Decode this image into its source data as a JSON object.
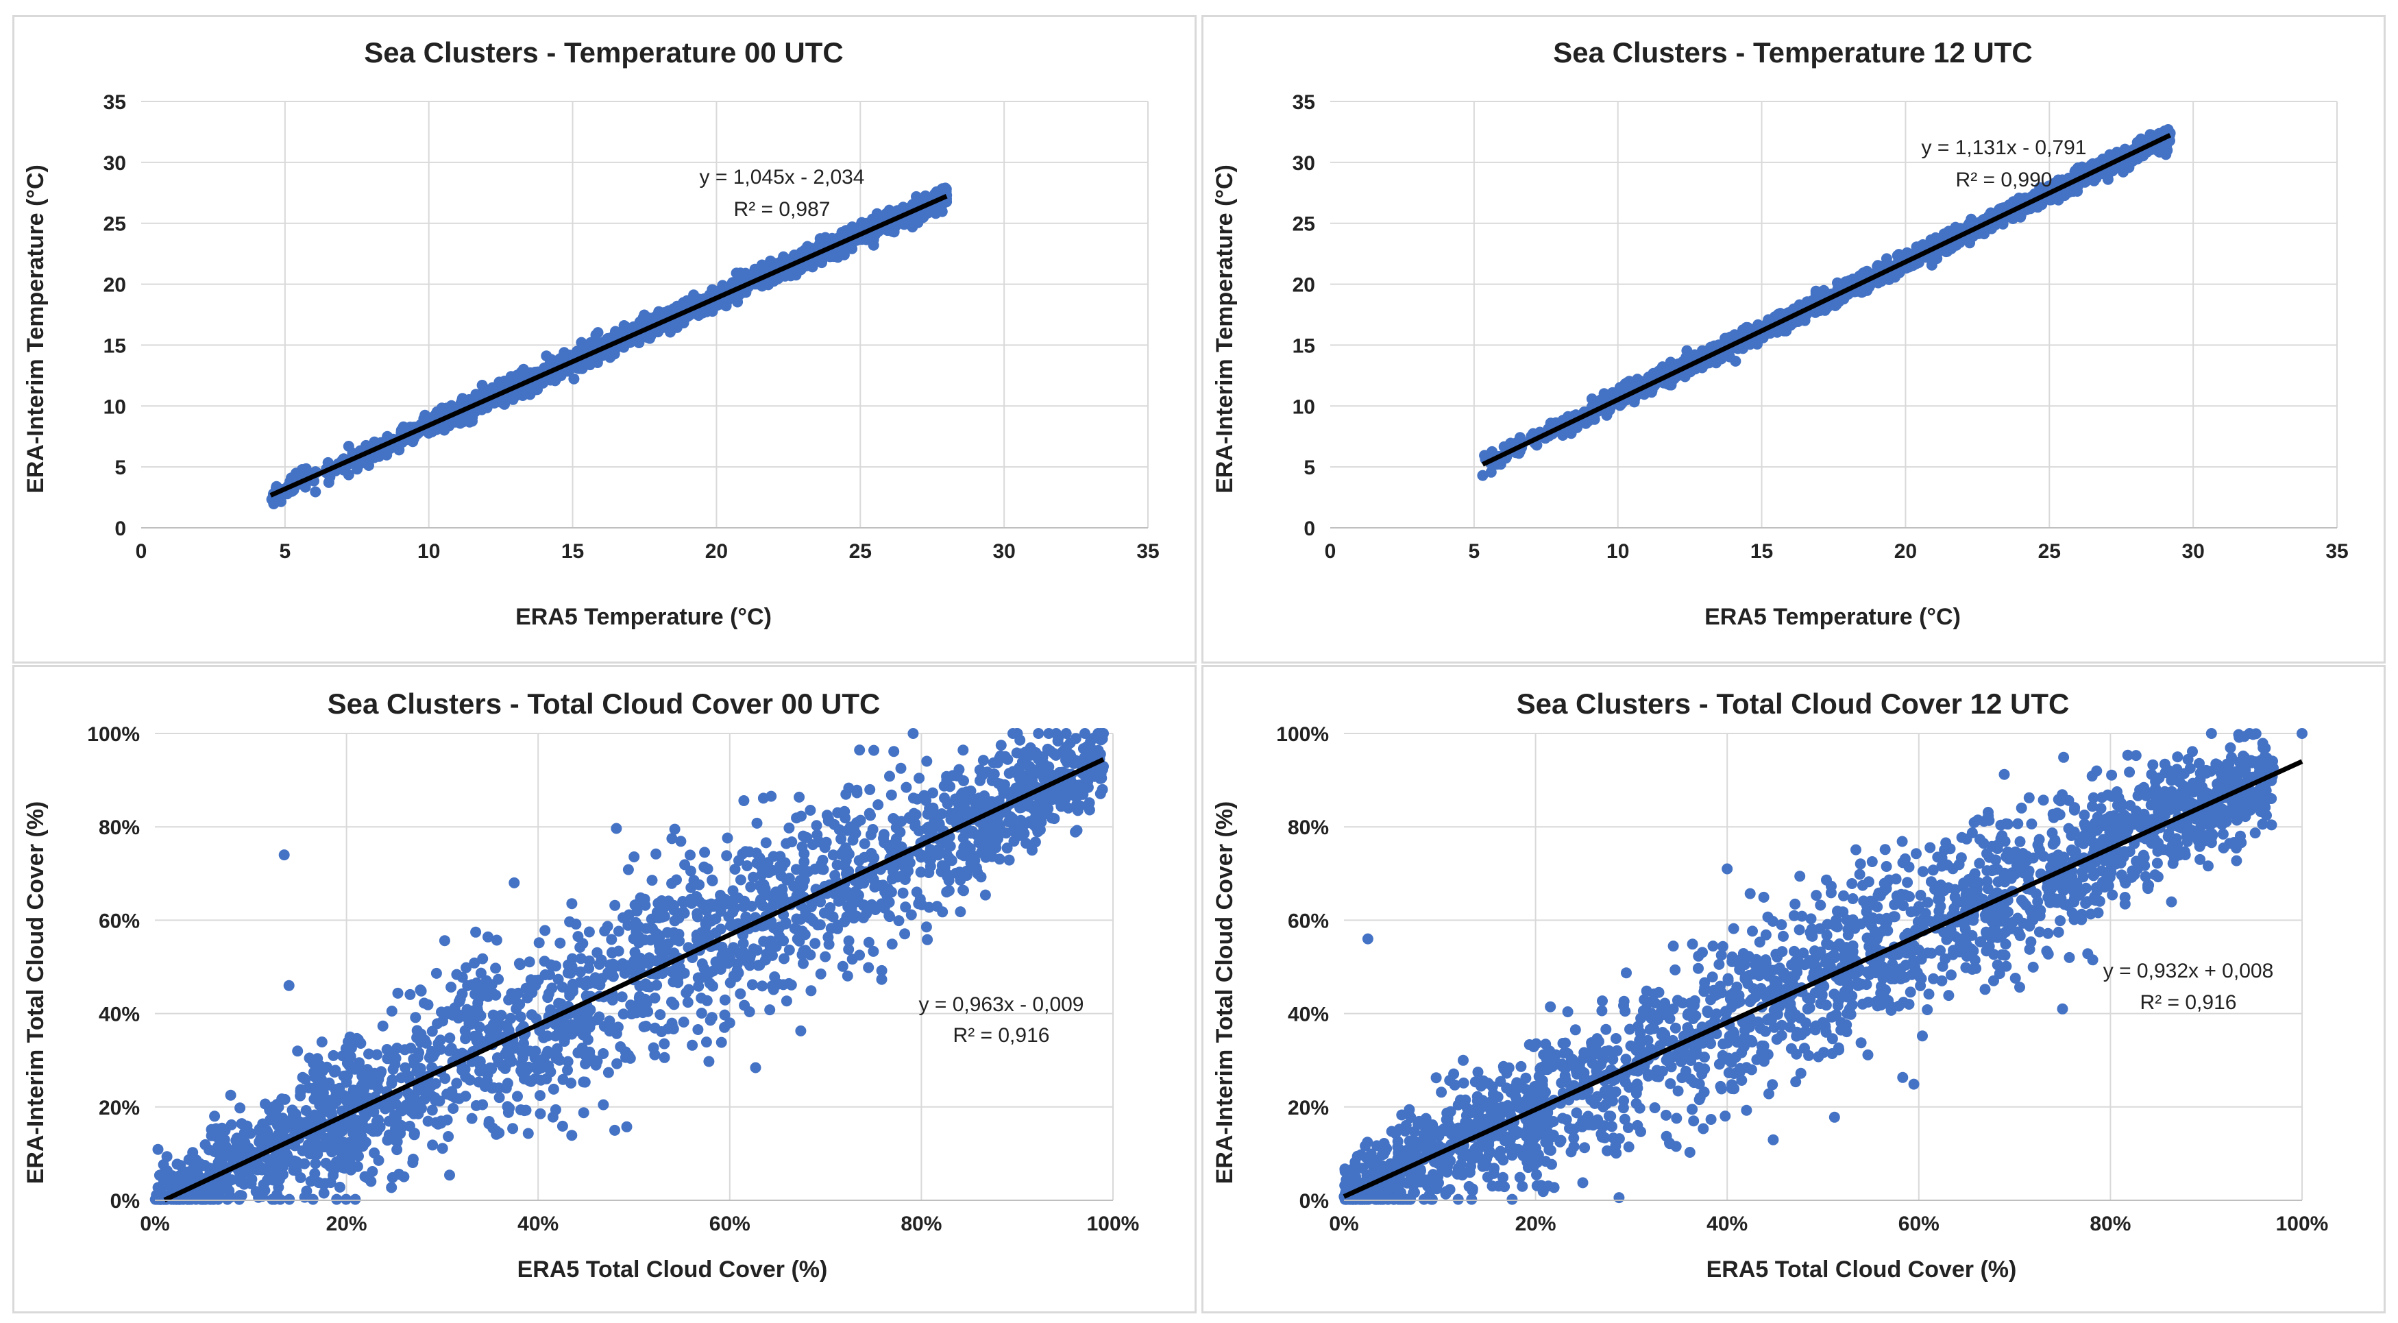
{
  "colors": {
    "points": "#4472c4",
    "trend": "#000000"
  },
  "chart_data": [
    {
      "type": "scatter",
      "title": "Sea Clusters - Temperature 00 UTC",
      "xlabel": "ERA5 Temperature  (°C)",
      "ylabel": "ERA-Interim Temperature  (°C)",
      "xlim": [
        0,
        35
      ],
      "ylim": [
        0,
        35
      ],
      "xticks": [
        0,
        5,
        10,
        15,
        20,
        25,
        30,
        35
      ],
      "yticks": [
        0,
        5,
        10,
        15,
        20,
        25,
        30,
        35
      ],
      "xtick_labels": [
        "0",
        "5",
        "10",
        "15",
        "20",
        "25",
        "30",
        "35"
      ],
      "ytick_labels": [
        "0",
        "5",
        "10",
        "15",
        "20",
        "25",
        "30",
        "35"
      ],
      "trendline": {
        "slope": 1.045,
        "intercept": -2.034,
        "x_range": [
          4.5,
          28
        ]
      },
      "equation": "y = 1,045x - 2,034",
      "r2": "R² = 0,987",
      "point_cloud": {
        "n": 1600,
        "x_range": [
          4.5,
          28
        ],
        "spread": 0.45,
        "tail_x_start": 9
      },
      "outliers": [
        [
          4.6,
          2.8
        ],
        [
          5.3,
          3.1
        ],
        [
          6.5,
          5.0
        ],
        [
          28.0,
          27.3
        ]
      ]
    },
    {
      "type": "scatter",
      "title": "Sea Clusters - Temperature 12 UTC",
      "xlabel": "ERA5 Temperature  (°C)",
      "ylabel": "ERA-Interim Temperature  (°C)",
      "xlim": [
        0,
        35
      ],
      "ylim": [
        0,
        35
      ],
      "xticks": [
        0,
        5,
        10,
        15,
        20,
        25,
        30,
        35
      ],
      "yticks": [
        0,
        5,
        10,
        15,
        20,
        25,
        30,
        35
      ],
      "xtick_labels": [
        "0",
        "5",
        "10",
        "15",
        "20",
        "25",
        "30",
        "35"
      ],
      "ytick_labels": [
        "0",
        "5",
        "10",
        "15",
        "20",
        "25",
        "30",
        "35"
      ],
      "trendline": {
        "slope": 1.131,
        "intercept": -0.791,
        "x_range": [
          5.3,
          29.2
        ]
      },
      "equation": "y = 1,131x - 0,791",
      "r2": "R² = 0,990",
      "point_cloud": {
        "n": 1600,
        "x_range": [
          5.3,
          29.2
        ],
        "spread": 0.4,
        "tail_x_start": 10
      },
      "outliers": [
        [
          5.3,
          4.3
        ],
        [
          5.6,
          5.6
        ],
        [
          6.6,
          6.3
        ],
        [
          29.2,
          32.4
        ]
      ]
    },
    {
      "type": "scatter",
      "title": "Sea Clusters - Total Cloud Cover 00 UTC",
      "xlabel": "ERA5 Total Cloud Cover (%)",
      "ylabel": "ERA-Interim Total Cloud Cover (%)",
      "xlim": [
        0,
        100
      ],
      "ylim": [
        0,
        100
      ],
      "xticks": [
        0,
        20,
        40,
        60,
        80,
        100
      ],
      "yticks": [
        0,
        20,
        40,
        60,
        80,
        100
      ],
      "xtick_labels": [
        "0%",
        "20%",
        "40%",
        "60%",
        "80%",
        "100%"
      ],
      "ytick_labels": [
        "0%",
        "20%",
        "40%",
        "60%",
        "80%",
        "100%"
      ],
      "trendline": {
        "slope": 0.963,
        "intercept": -0.9,
        "x_range": [
          1,
          99
        ]
      },
      "equation": "y = 0,963x - 0,009",
      "r2": "R² = 0,916",
      "point_cloud": {
        "n": 2200,
        "x_range": [
          0,
          99
        ],
        "spread": 7.5,
        "tail_x_start": 20
      },
      "outliers": [
        [
          13.5,
          74
        ],
        [
          37.5,
          68
        ],
        [
          48,
          15
        ],
        [
          14,
          46
        ],
        [
          60,
          38
        ],
        [
          99,
          100
        ],
        [
          98,
          99
        ]
      ]
    },
    {
      "type": "scatter",
      "title": "Sea Clusters - Total Cloud Cover 12 UTC",
      "xlabel": "ERA5 Total Cloud Cover (%)",
      "ylabel": "ERA-Interim Total Cloud Cover (%)",
      "xlim": [
        0,
        100
      ],
      "ylim": [
        0,
        100
      ],
      "xticks": [
        0,
        20,
        40,
        60,
        80,
        100
      ],
      "yticks": [
        0,
        20,
        40,
        60,
        80,
        100
      ],
      "xtick_labels": [
        "0%",
        "20%",
        "40%",
        "60%",
        "80%",
        "100%"
      ],
      "ytick_labels": [
        "0%",
        "20%",
        "40%",
        "60%",
        "80%",
        "100%"
      ],
      "trendline": {
        "slope": 0.932,
        "intercept": 0.8,
        "x_range": [
          0,
          100
        ]
      },
      "equation": "y = 0,932x + 0,008",
      "r2": "R² = 0,916",
      "point_cloud": {
        "n": 2200,
        "x_range": [
          0,
          97
        ],
        "spread": 7.0,
        "tail_x_start": 20
      },
      "outliers": [
        [
          2.5,
          56
        ],
        [
          40,
          71
        ],
        [
          75,
          41
        ],
        [
          100,
          100
        ],
        [
          87,
          95
        ]
      ]
    }
  ]
}
